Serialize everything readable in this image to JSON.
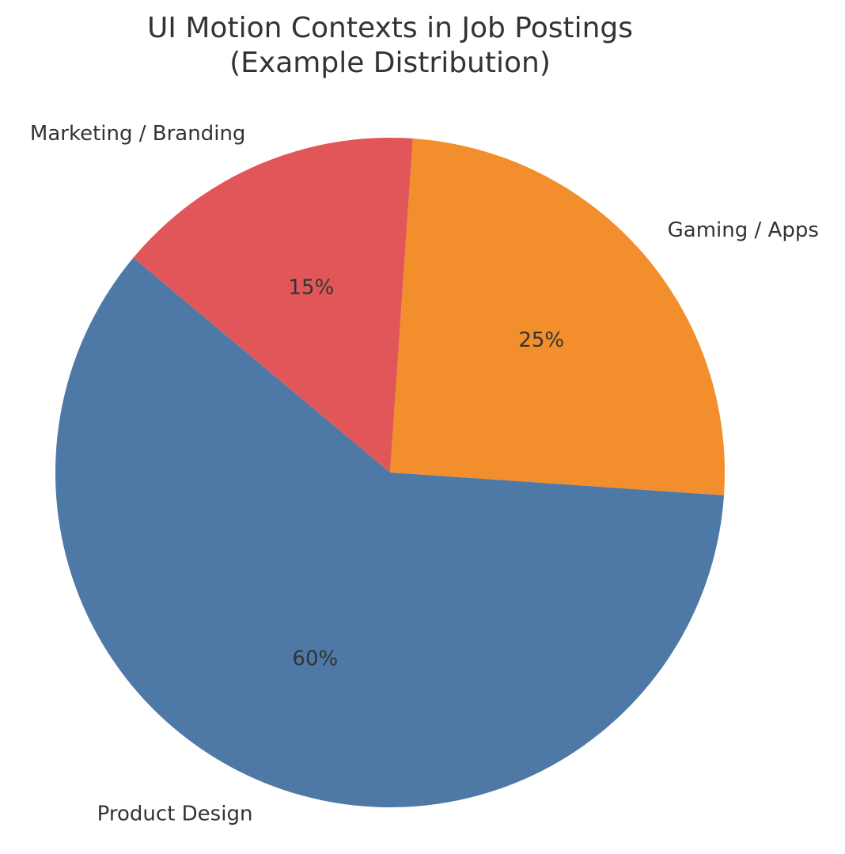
{
  "chart_data": {
    "type": "pie",
    "title": "UI Motion Contexts in Job Postings\n(Example Distribution)",
    "title_lines": [
      "UI Motion Contexts in Job Postings",
      "(Example Distribution)"
    ],
    "categories": [
      "Product Design",
      "Gaming / Apps",
      "Marketing / Branding"
    ],
    "values": [
      60,
      25,
      15
    ],
    "value_labels": [
      "60%",
      "25%",
      "15%"
    ],
    "colors": [
      "#4e79a7",
      "#f28e2b",
      "#e15759"
    ],
    "start_angle_deg": -3.9,
    "direction": "counterclockwise",
    "draw_order": [
      "Gaming / Apps",
      "Marketing / Branding",
      "Product Design"
    ],
    "legend": "none"
  }
}
